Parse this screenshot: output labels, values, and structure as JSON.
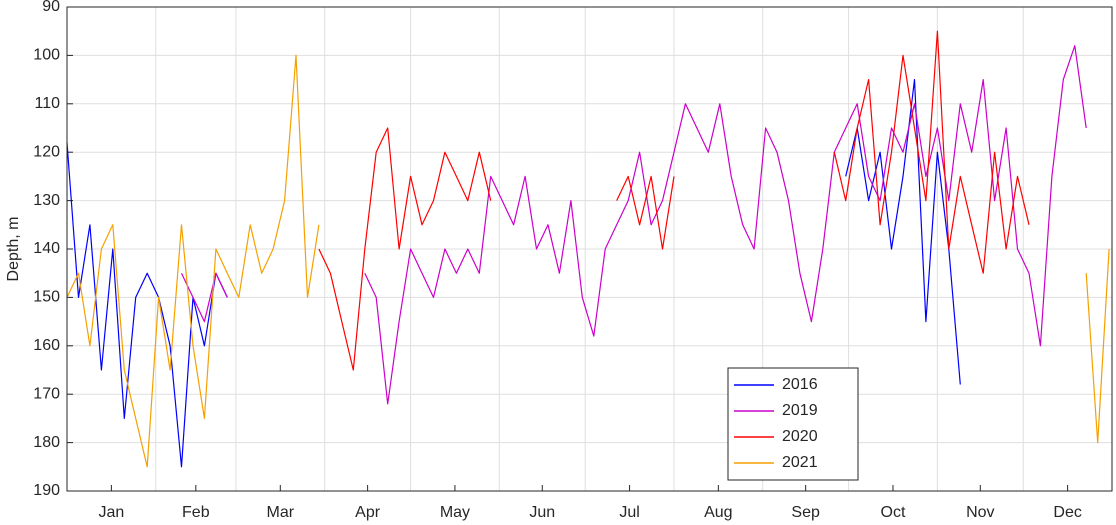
{
  "chart_data": {
    "type": "line",
    "y_label": "Depth, m",
    "x": [
      0,
      4,
      8,
      12,
      16,
      20,
      24,
      28,
      32,
      36,
      40,
      44,
      48,
      52,
      56,
      60,
      64,
      68,
      72,
      76,
      80,
      84,
      88,
      92,
      96,
      100,
      104,
      108,
      112,
      116,
      120,
      124,
      128,
      132,
      136,
      140,
      144,
      148,
      152,
      156,
      160,
      164,
      168,
      172,
      176,
      180,
      184,
      188,
      192,
      196,
      200,
      204,
      208,
      212,
      216,
      220,
      224,
      228,
      232,
      236,
      240,
      244,
      248,
      252,
      256,
      260,
      264,
      268,
      272,
      276,
      280,
      284,
      288,
      292,
      296,
      300,
      304,
      308,
      312,
      316,
      320,
      324,
      328,
      332,
      336,
      340,
      344,
      348,
      352,
      356,
      360,
      364
    ],
    "series": [
      {
        "name": "2016",
        "color": "#0000ff",
        "values": [
          118,
          150,
          135,
          165,
          140,
          175,
          150,
          145,
          150,
          160,
          185,
          150,
          160,
          145,
          150,
          null,
          null,
          null,
          null,
          null,
          null,
          null,
          null,
          null,
          null,
          null,
          null,
          null,
          null,
          null,
          null,
          null,
          null,
          null,
          null,
          null,
          null,
          null,
          null,
          null,
          null,
          null,
          null,
          null,
          null,
          null,
          null,
          null,
          null,
          null,
          null,
          null,
          null,
          null,
          null,
          null,
          null,
          null,
          null,
          null,
          null,
          null,
          null,
          null,
          null,
          null,
          null,
          null,
          125,
          115,
          130,
          120,
          140,
          125,
          105,
          155,
          120,
          140,
          168,
          null,
          null,
          null,
          null,
          null,
          null,
          null,
          null,
          null,
          null,
          null,
          null,
          null
        ]
      },
      {
        "name": "2019",
        "color": "#cc00cc",
        "values": [
          null,
          null,
          null,
          null,
          null,
          null,
          null,
          null,
          null,
          null,
          145,
          150,
          155,
          145,
          150,
          null,
          null,
          null,
          null,
          null,
          null,
          null,
          null,
          null,
          null,
          null,
          145,
          150,
          172,
          155,
          140,
          145,
          150,
          140,
          145,
          140,
          145,
          125,
          130,
          135,
          125,
          140,
          135,
          145,
          130,
          150,
          158,
          140,
          135,
          130,
          120,
          135,
          130,
          120,
          110,
          115,
          120,
          110,
          125,
          135,
          140,
          115,
          120,
          130,
          145,
          155,
          140,
          120,
          115,
          110,
          125,
          130,
          115,
          120,
          110,
          125,
          115,
          130,
          110,
          120,
          105,
          130,
          115,
          140,
          145,
          160,
          125,
          105,
          98,
          115,
          null,
          null
        ]
      },
      {
        "name": "2020",
        "color": "#ff0000",
        "values": [
          null,
          null,
          null,
          null,
          null,
          null,
          null,
          null,
          null,
          null,
          null,
          null,
          null,
          null,
          null,
          null,
          null,
          null,
          null,
          null,
          null,
          null,
          140,
          145,
          155,
          165,
          140,
          120,
          115,
          140,
          125,
          135,
          130,
          120,
          125,
          130,
          120,
          130,
          null,
          null,
          null,
          null,
          null,
          null,
          null,
          null,
          null,
          null,
          130,
          125,
          135,
          125,
          140,
          125,
          null,
          null,
          null,
          null,
          null,
          null,
          null,
          null,
          null,
          null,
          null,
          null,
          null,
          120,
          130,
          115,
          105,
          135,
          120,
          100,
          115,
          130,
          95,
          140,
          125,
          135,
          145,
          120,
          140,
          125,
          135,
          null,
          null,
          null,
          null,
          null,
          null,
          null
        ]
      },
      {
        "name": "2021",
        "color": "#f5a000",
        "values": [
          150,
          145,
          160,
          140,
          135,
          165,
          175,
          185,
          150,
          165,
          135,
          160,
          175,
          140,
          145,
          150,
          135,
          145,
          140,
          130,
          100,
          150,
          135,
          null,
          null,
          null,
          null,
          null,
          null,
          null,
          null,
          null,
          null,
          null,
          null,
          null,
          null,
          null,
          null,
          null,
          null,
          null,
          null,
          null,
          null,
          null,
          null,
          null,
          null,
          null,
          null,
          null,
          null,
          null,
          null,
          null,
          null,
          null,
          null,
          null,
          null,
          null,
          null,
          null,
          null,
          null,
          null,
          null,
          null,
          null,
          null,
          null,
          null,
          null,
          null,
          null,
          null,
          null,
          null,
          null,
          null,
          null,
          null,
          null,
          null,
          null,
          null,
          null,
          null,
          145,
          180,
          140
        ]
      }
    ],
    "xlim": [
      0,
      365
    ],
    "xticks": [
      {
        "value": 15.5,
        "label": "Jan"
      },
      {
        "value": 45,
        "label": "Feb"
      },
      {
        "value": 74.5,
        "label": "Mar"
      },
      {
        "value": 105,
        "label": "Apr"
      },
      {
        "value": 135.5,
        "label": "May"
      },
      {
        "value": 166,
        "label": "Jun"
      },
      {
        "value": 196.5,
        "label": "Jul"
      },
      {
        "value": 227.5,
        "label": "Aug"
      },
      {
        "value": 258,
        "label": "Sep"
      },
      {
        "value": 288.5,
        "label": "Oct"
      },
      {
        "value": 319,
        "label": "Nov"
      },
      {
        "value": 349.5,
        "label": "Dec"
      }
    ],
    "x_grid": [
      31,
      59,
      90,
      120,
      151,
      181,
      212,
      243,
      273,
      304,
      334
    ],
    "ylim": [
      90,
      190
    ],
    "y_reversed": true,
    "yticks": [
      90,
      100,
      110,
      120,
      130,
      140,
      150,
      160,
      170,
      180,
      190
    ],
    "grid": true,
    "legend_position": "lower center"
  }
}
